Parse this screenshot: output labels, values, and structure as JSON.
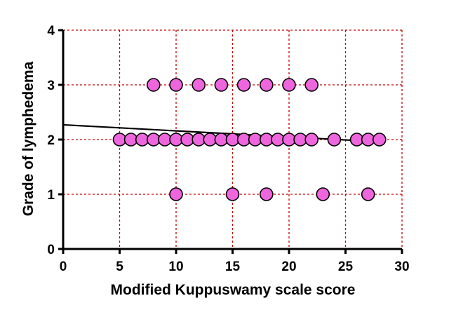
{
  "colors": {
    "point_fill": "#ee66dd",
    "point_stroke": "#000000",
    "grid": "#cc0000",
    "axis": "#000000",
    "trend_line": "#000000"
  },
  "chart_data": {
    "type": "scatter",
    "title": "",
    "xlabel": "Modified Kuppuswamy scale score",
    "ylabel": "Grade of lymphedema",
    "xlim": [
      0,
      30
    ],
    "ylim": [
      0,
      4
    ],
    "x_ticks": [
      0,
      5,
      10,
      15,
      20,
      25,
      30
    ],
    "y_ticks": [
      0,
      1,
      2,
      3,
      4
    ],
    "grid": true,
    "grid_style": "dotted",
    "x_tick_labels": [
      "0",
      "5",
      "10",
      "15",
      "20",
      "25",
      "30"
    ],
    "y_tick_labels": [
      "0",
      "1",
      "2",
      "3",
      "4"
    ],
    "points": [
      {
        "x": 8,
        "y": 3
      },
      {
        "x": 10,
        "y": 3
      },
      {
        "x": 12,
        "y": 3
      },
      {
        "x": 14,
        "y": 3
      },
      {
        "x": 16,
        "y": 3
      },
      {
        "x": 18,
        "y": 3
      },
      {
        "x": 20,
        "y": 3
      },
      {
        "x": 22,
        "y": 3
      },
      {
        "x": 5,
        "y": 2
      },
      {
        "x": 6,
        "y": 2
      },
      {
        "x": 7,
        "y": 2
      },
      {
        "x": 8,
        "y": 2
      },
      {
        "x": 9,
        "y": 2
      },
      {
        "x": 10,
        "y": 2
      },
      {
        "x": 11,
        "y": 2
      },
      {
        "x": 12,
        "y": 2
      },
      {
        "x": 13,
        "y": 2
      },
      {
        "x": 14,
        "y": 2
      },
      {
        "x": 15,
        "y": 2
      },
      {
        "x": 16,
        "y": 2
      },
      {
        "x": 17,
        "y": 2
      },
      {
        "x": 18,
        "y": 2
      },
      {
        "x": 19,
        "y": 2
      },
      {
        "x": 20,
        "y": 2
      },
      {
        "x": 21,
        "y": 2
      },
      {
        "x": 22,
        "y": 2
      },
      {
        "x": 24,
        "y": 2
      },
      {
        "x": 26,
        "y": 2
      },
      {
        "x": 27,
        "y": 2
      },
      {
        "x": 28,
        "y": 2
      },
      {
        "x": 10,
        "y": 1
      },
      {
        "x": 15,
        "y": 1
      },
      {
        "x": 18,
        "y": 1
      },
      {
        "x": 23,
        "y": 1
      },
      {
        "x": 27,
        "y": 1
      }
    ],
    "trend_line": {
      "x": [
        0,
        28
      ],
      "y": [
        2.27,
        1.96
      ]
    }
  }
}
